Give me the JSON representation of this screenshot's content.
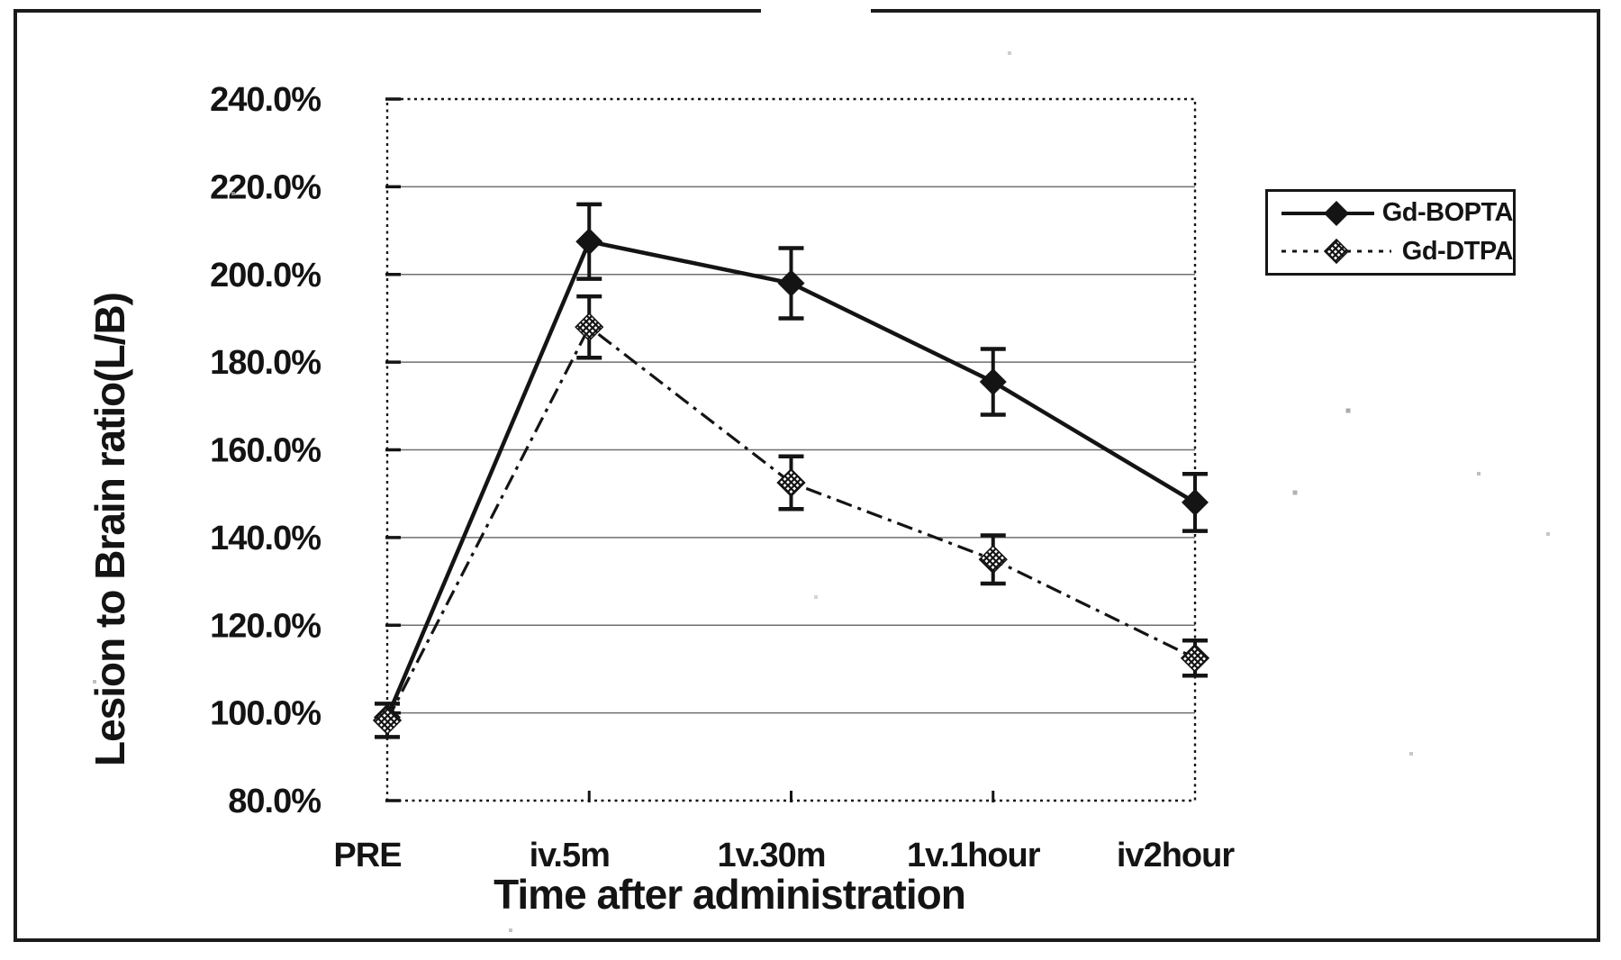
{
  "chart_data": {
    "type": "line",
    "title": "",
    "xlabel": "Time after administration",
    "ylabel": "Lesion to Brain ratio(L/B)",
    "categories": [
      "PRE",
      "iv.5m",
      "1v.30m",
      "1v.1hour",
      "iv2hour"
    ],
    "y_axis": {
      "min": 80,
      "max": 240,
      "step": 20,
      "unit": "%",
      "tick_labels": [
        "240.0%",
        "220.0%",
        "200.0%",
        "180.0%",
        "160.0%",
        "140.0%",
        "120.0%",
        "100.0%",
        "80.0%"
      ]
    },
    "grid": true,
    "legend_position": "right",
    "ink_color": "#141414",
    "grid_color": "#6f6f6f",
    "series": [
      {
        "name": "Gd-BOPTA",
        "line_style": "solid",
        "marker": "filled-diamond",
        "values": [
          99.0,
          207.5,
          198.0,
          175.5,
          148.0
        ],
        "error": [
          0,
          8.5,
          8.0,
          7.5,
          6.5
        ]
      },
      {
        "name": "Gd-DTPA",
        "line_style": "dash-dot",
        "marker": "crosshatch-diamond",
        "values": [
          98.3,
          188.0,
          152.5,
          135.0,
          112.5
        ],
        "error": [
          3.8,
          7.0,
          6.0,
          5.5,
          4.0
        ]
      }
    ]
  }
}
